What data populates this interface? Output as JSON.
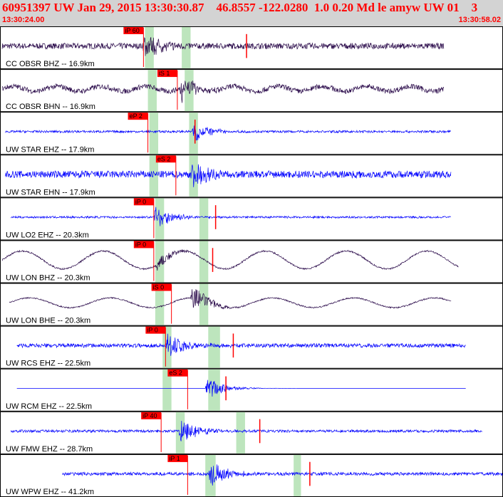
{
  "header": {
    "title": "60951397 UW Jan 29, 2015 13:30:30.87    46.8557 -122.0280  1.0 0.20 Md le amyw UW 01    3",
    "start_time": "13:30:24.00",
    "end_time": "13:30:58.02"
  },
  "colors": {
    "header_bg": "#d3d3d3",
    "header_text": "#ff0000",
    "trace_broadband": "#2a0a4a",
    "trace_short_period": "#0000ff",
    "pick_marker": "#ff0000",
    "window_band": "#b2e0b2",
    "row_border": "#000000"
  },
  "chart_data": {
    "type": "line",
    "title": "60951397 UW Jan 29, 2015 13:30:30.87    46.8557 -122.0280  1.0 0.20 Md le amyw UW 01    3",
    "x_axis": {
      "start": "13:30:24.00",
      "end": "13:30:58.02",
      "unit": "s",
      "range_s": [
        0,
        34.02
      ]
    },
    "series": [
      {
        "name": "CC OBSR BHZ -- 16.9km",
        "color": "#2a0a4a",
        "trace_start_s": 0.0,
        "trace_end_s": 30.0,
        "noise": 0.18,
        "sig_amp": 1.0,
        "osc_amp": 0,
        "osc_period_s": 0,
        "sig_start_s": 9.5,
        "pick": {
          "label": "iP 60",
          "time_s": 9.6
        },
        "windows_s": [
          [
            9.7,
            10.3
          ],
          [
            12.2,
            12.8
          ]
        ],
        "s_marker_s": 16.6
      },
      {
        "name": "CC OBSR BHN -- 16.9km",
        "color": "#2a0a4a",
        "trace_start_s": 0.0,
        "trace_end_s": 30.0,
        "noise": 0.16,
        "sig_amp": 1.0,
        "osc_amp": 0.15,
        "osc_period_s": 3.0,
        "sig_start_s": 12.0,
        "pick": {
          "label": "iS 1",
          "time_s": 11.9
        },
        "windows_s": [
          [
            9.9,
            10.5
          ],
          [
            12.4,
            13.0
          ]
        ],
        "s_marker_s": null
      },
      {
        "name": "UW STAR EHZ -- 17.9km",
        "color": "#0000ff",
        "trace_start_s": 0.2,
        "trace_end_s": 30.5,
        "noise": 0.07,
        "sig_amp": 0.7,
        "osc_amp": 0,
        "osc_period_s": 0,
        "sig_start_s": 12.9,
        "pick": {
          "label": "eP 2",
          "time_s": 9.9
        },
        "windows_s": [
          [
            10.0,
            10.6
          ],
          [
            12.7,
            13.3
          ]
        ],
        "s_marker_s": 13.1
      },
      {
        "name": "UW STAR EHN -- 17.9km",
        "color": "#0000ff",
        "trace_start_s": 0.2,
        "trace_end_s": 30.5,
        "noise": 0.22,
        "sig_amp": 0.9,
        "osc_amp": 0,
        "osc_period_s": 0,
        "sig_start_s": 12.8,
        "pick": {
          "label": "eS 2",
          "time_s": 11.8
        },
        "windows_s": [
          [
            10.0,
            10.6
          ],
          [
            12.7,
            13.3
          ]
        ],
        "s_marker_s": null
      },
      {
        "name": "UW LO2 EHZ -- 20.3km",
        "color": "#0000ff",
        "trace_start_s": 0.6,
        "trace_end_s": 30.5,
        "noise": 0.06,
        "sig_amp": 0.9,
        "osc_amp": 0,
        "osc_period_s": 0,
        "sig_start_s": 10.3,
        "pick": {
          "label": "iP 0",
          "time_s": 10.3
        },
        "windows_s": [
          [
            10.4,
            11.0
          ],
          [
            13.4,
            14.0
          ]
        ],
        "s_marker_s": 14.5
      },
      {
        "name": "UW LON BHZ -- 20.3km",
        "color": "#2a0a4a",
        "trace_start_s": 0.0,
        "trace_end_s": 31.0,
        "noise": 0.05,
        "sig_amp": 0.5,
        "osc_amp": 0.55,
        "osc_period_s": 5.5,
        "sig_start_s": 10.4,
        "pick": {
          "label": "iP 0",
          "time_s": 10.3
        },
        "windows_s": [
          [
            10.4,
            11.0
          ],
          [
            13.4,
            14.0
          ]
        ],
        "s_marker_s": 14.3
      },
      {
        "name": "UW LON BHE -- 20.3km",
        "color": "#2a0a4a",
        "trace_start_s": 0.5,
        "trace_end_s": 30.5,
        "noise": 0.04,
        "sig_amp": 0.9,
        "osc_amp": 0.3,
        "osc_period_s": 5.5,
        "sig_start_s": 12.8,
        "pick": {
          "label": "iS 0",
          "time_s": 11.5
        },
        "windows_s": [
          [
            10.4,
            11.0
          ],
          [
            13.4,
            14.0
          ]
        ],
        "s_marker_s": null
      },
      {
        "name": "UW RCS EHZ -- 22.5km",
        "color": "#0000ff",
        "trace_start_s": 1.0,
        "trace_end_s": 31.5,
        "noise": 0.12,
        "sig_amp": 1.0,
        "osc_amp": 0,
        "osc_period_s": 0,
        "sig_start_s": 11.1,
        "pick": {
          "label": "iP 0",
          "time_s": 11.1
        },
        "windows_s": [
          [
            10.9,
            11.5
          ],
          [
            14.0,
            14.8
          ]
        ],
        "s_marker_s": 15.7
      },
      {
        "name": "UW RCM EHZ -- 22.5km",
        "color": "#0000ff",
        "trace_start_s": 1.0,
        "trace_end_s": 31.5,
        "noise": 0.0,
        "sig_amp": 0.8,
        "osc_amp": 0,
        "osc_period_s": 0,
        "sig_start_s": 13.8,
        "pick": {
          "label": "eS 2",
          "time_s": 12.6
        },
        "windows_s": [
          [
            10.9,
            11.5
          ],
          [
            14.0,
            14.8
          ]
        ],
        "s_marker_s": 15.2
      },
      {
        "name": "UW FMW EHZ -- 28.7km",
        "color": "#0000ff",
        "trace_start_s": 0.6,
        "trace_end_s": 32.6,
        "noise": 0.08,
        "sig_amp": 1.0,
        "osc_amp": 0,
        "osc_period_s": 0,
        "sig_start_s": 12.0,
        "pick": {
          "label": "iP 40",
          "time_s": 10.8
        },
        "windows_s": [
          [
            11.8,
            12.4
          ],
          [
            15.9,
            16.5
          ]
        ],
        "s_marker_s": 17.5
      },
      {
        "name": "UW WPW EHZ -- 41.2km",
        "color": "#0000ff",
        "trace_start_s": 4.1,
        "trace_end_s": 34.0,
        "noise": 0.1,
        "sig_amp": 1.0,
        "osc_amp": 0,
        "osc_period_s": 0,
        "sig_start_s": 14.0,
        "pick": {
          "label": "iP 1",
          "time_s": 12.6
        },
        "windows_s": [
          [
            13.8,
            14.5
          ],
          [
            19.8,
            20.3
          ]
        ],
        "s_marker_s": 20.9
      }
    ]
  }
}
